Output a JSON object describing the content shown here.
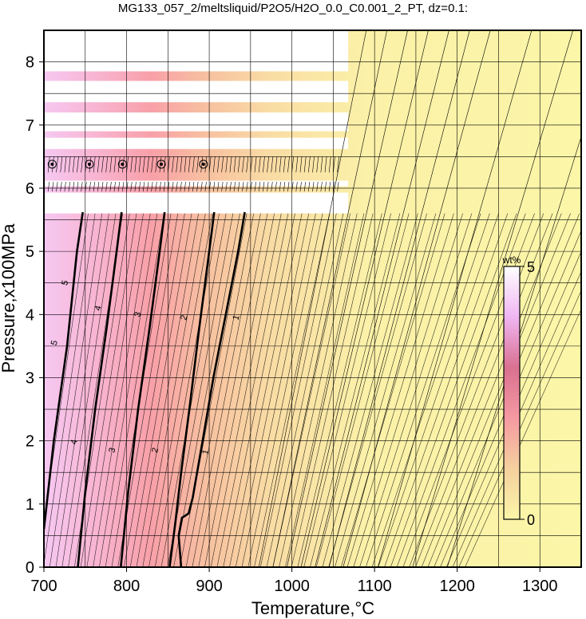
{
  "chart_data": {
    "type": "heatmap",
    "title": "MG133_057_2/meltsliquid/P2O5/H2O_0.0_C0.001_2_PT, dz=0.1:",
    "xlabel": "Temperature,°C",
    "ylabel": "Pressure,x100MPa",
    "xlim": [
      700,
      1350
    ],
    "ylim": [
      0,
      8.5
    ],
    "x_ticks": [
      700,
      800,
      900,
      1000,
      1100,
      1200,
      1300
    ],
    "y_ticks": [
      0,
      1,
      2,
      3,
      4,
      5,
      6,
      7,
      8
    ],
    "grid": true,
    "colorbar": {
      "unit": "wt%",
      "min": 0,
      "max": 5,
      "min_label": "0",
      "max_label": "5",
      "colors": [
        "#fbf6a8",
        "#f5c29a",
        "#f59aa2",
        "#d97090",
        "#f0b5f2",
        "#ffffff"
      ]
    },
    "major_contours": [
      {
        "label": "5",
        "points": [
          [
            700,
            0.6
          ],
          [
            712,
            2.0
          ],
          [
            728,
            3.5
          ],
          [
            740,
            5.0
          ],
          [
            747,
            5.62
          ]
        ]
      },
      {
        "label": "4",
        "points": [
          [
            741,
            0.0
          ],
          [
            750,
            1.2
          ],
          [
            762,
            2.5
          ],
          [
            776,
            3.8
          ],
          [
            788,
            5.0
          ],
          [
            794,
            5.62
          ]
        ]
      },
      {
        "label": "3",
        "points": [
          [
            793,
            0.0
          ],
          [
            802,
            1.2
          ],
          [
            814,
            2.5
          ],
          [
            828,
            3.8
          ],
          [
            840,
            5.0
          ],
          [
            846,
            5.62
          ]
        ]
      },
      {
        "label": "2",
        "points": [
          [
            852,
            0.0
          ],
          [
            859,
            0.7
          ],
          [
            866,
            1.5
          ],
          [
            876,
            2.5
          ],
          [
            888,
            3.8
          ],
          [
            900,
            5.0
          ],
          [
            906,
            5.62
          ]
        ]
      },
      {
        "label": "1",
        "points": [
          [
            866,
            0.0
          ],
          [
            863,
            0.5
          ],
          [
            867,
            0.78
          ],
          [
            875,
            0.85
          ],
          [
            880,
            1.1
          ],
          [
            892,
            2.0
          ],
          [
            905,
            3.0
          ],
          [
            920,
            4.0
          ],
          [
            935,
            5.0
          ],
          [
            943,
            5.62
          ]
        ]
      }
    ],
    "contour_labels": [
      {
        "text": "5",
        "x": 726,
        "y": 4.5
      },
      {
        "text": "5",
        "x": 713,
        "y": 3.55
      },
      {
        "text": "4",
        "x": 766,
        "y": 4.1
      },
      {
        "text": "4",
        "x": 737,
        "y": 1.98
      },
      {
        "text": "3",
        "x": 814,
        "y": 4.0
      },
      {
        "text": "3",
        "x": 783,
        "y": 1.85
      },
      {
        "text": "2",
        "x": 870,
        "y": 3.95
      },
      {
        "text": "2",
        "x": 835,
        "y": 1.85
      },
      {
        "text": "1",
        "x": 933,
        "y": 3.95
      },
      {
        "text": "1",
        "x": 896,
        "y": 1.82
      }
    ],
    "blank_bands": [
      [
        6.62,
        6.8
      ],
      [
        6.9,
        7.2
      ],
      [
        7.36,
        7.7
      ],
      [
        7.85,
        8.5
      ],
      [
        6.03,
        6.12
      ],
      [
        5.6,
        5.93
      ]
    ],
    "colored_bands": [
      [
        7.7,
        7.85
      ],
      [
        7.2,
        7.36
      ],
      [
        6.8,
        6.9
      ],
      [
        6.12,
        6.2
      ],
      [
        5.93,
        6.03
      ],
      [
        6.2,
        6.62
      ]
    ]
  }
}
